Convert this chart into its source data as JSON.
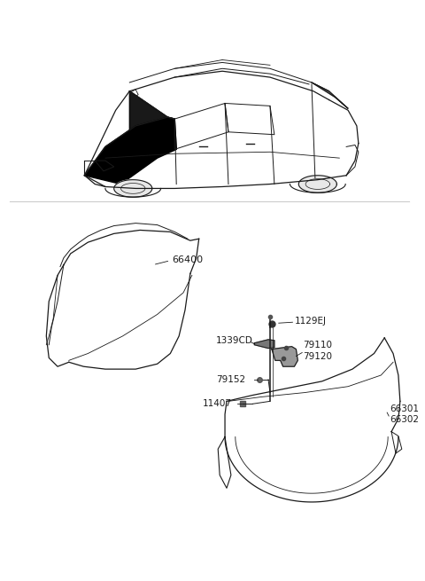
{
  "bg_color": "#ffffff",
  "line_color": "#1a1a1a",
  "label_color": "#1a1a1a",
  "parts": {
    "hood_label": "66400",
    "fender_label": "66301\n66302",
    "bolt_top": "1129EJ",
    "bracket_left": "1339CD",
    "bracket_right_top": "79110\n79120",
    "bracket_bolt_bottom": "79152",
    "bolt_bottom": "11407"
  },
  "font_size": 7.5
}
